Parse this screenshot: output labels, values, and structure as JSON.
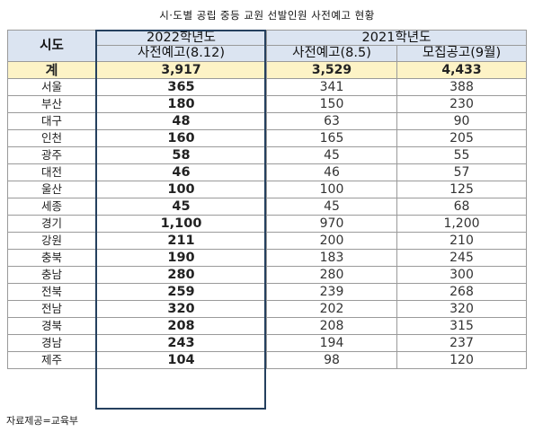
{
  "title": "시·도별 공립 중등 교원 선발인원 사전예고 현황",
  "header": {
    "region": "시도",
    "year2022": "2022학년도",
    "year2021": "2021학년도",
    "col2022": "사전예고(8.12)",
    "col2021a": "사전예고(8.5)",
    "col2021b": "모집공고(9월)"
  },
  "total": {
    "name": "계",
    "v2022": "3,917",
    "v2021a": "3,529",
    "v2021b": "4,433"
  },
  "rows": [
    {
      "name": "서울",
      "v2022": "365",
      "v2021a": "341",
      "v2021b": "388"
    },
    {
      "name": "부산",
      "v2022": "180",
      "v2021a": "150",
      "v2021b": "230"
    },
    {
      "name": "대구",
      "v2022": "48",
      "v2021a": "63",
      "v2021b": "90"
    },
    {
      "name": "인천",
      "v2022": "160",
      "v2021a": "165",
      "v2021b": "205"
    },
    {
      "name": "광주",
      "v2022": "58",
      "v2021a": "45",
      "v2021b": "55"
    },
    {
      "name": "대전",
      "v2022": "46",
      "v2021a": "46",
      "v2021b": "57"
    },
    {
      "name": "울산",
      "v2022": "100",
      "v2021a": "100",
      "v2021b": "125"
    },
    {
      "name": "세종",
      "v2022": "45",
      "v2021a": "45",
      "v2021b": "68"
    },
    {
      "name": "경기",
      "v2022": "1,100",
      "v2021a": "970",
      "v2021b": "1,200"
    },
    {
      "name": "강원",
      "v2022": "211",
      "v2021a": "200",
      "v2021b": "210"
    },
    {
      "name": "충북",
      "v2022": "190",
      "v2021a": "183",
      "v2021b": "245"
    },
    {
      "name": "충남",
      "v2022": "280",
      "v2021a": "280",
      "v2021b": "300"
    },
    {
      "name": "전북",
      "v2022": "259",
      "v2021a": "239",
      "v2021b": "268"
    },
    {
      "name": "전남",
      "v2022": "320",
      "v2021a": "202",
      "v2021b": "320"
    },
    {
      "name": "경북",
      "v2022": "208",
      "v2021a": "208",
      "v2021b": "315"
    },
    {
      "name": "경남",
      "v2022": "243",
      "v2021a": "194",
      "v2021b": "237"
    },
    {
      "name": "제주",
      "v2022": "104",
      "v2021a": "98",
      "v2021b": "120"
    }
  ],
  "source": "자료제공=교육부"
}
